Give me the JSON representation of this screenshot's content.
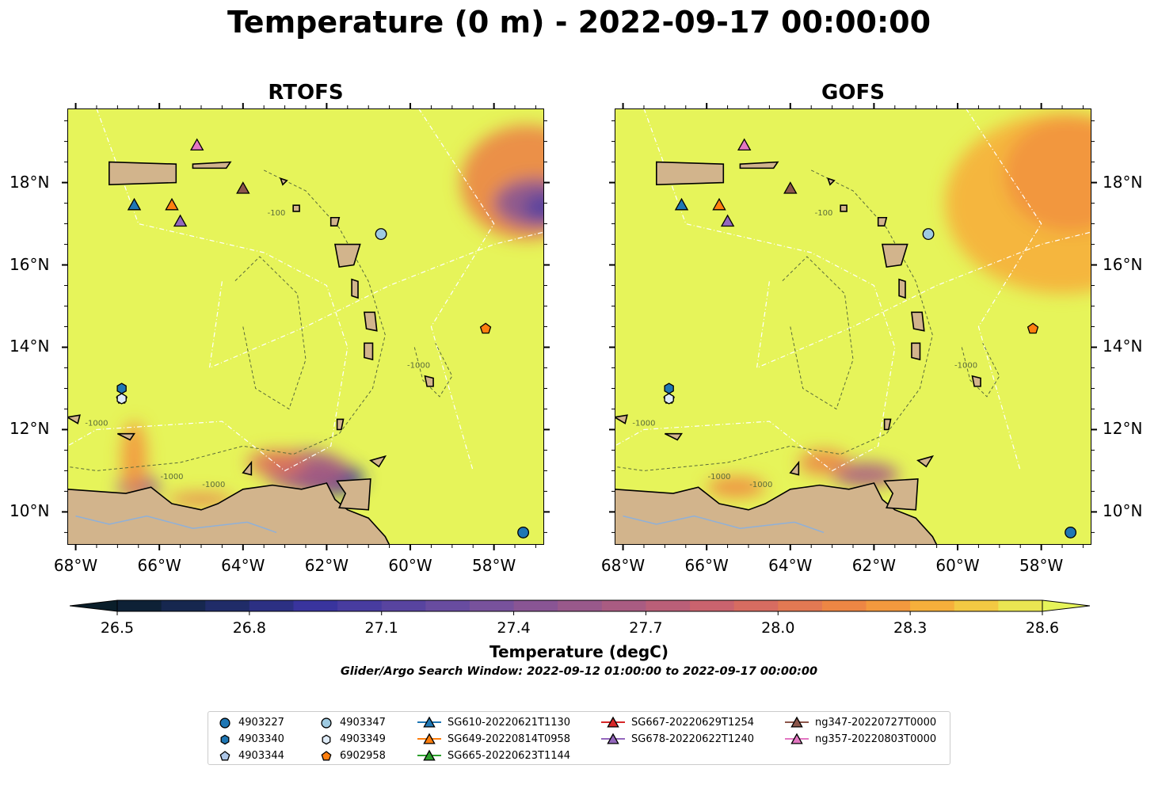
{
  "figure": {
    "title": "Temperature (0 m) - 2022-09-17 00:00:00",
    "search_window": "Glider/Argo Search Window: 2022-09-12 01:00:00 to 2022-09-17 00:00:00"
  },
  "panels": [
    {
      "title": "RTOFS",
      "hotspot": "east",
      "cold": "strong"
    },
    {
      "title": "GOFS",
      "hotspot": "broad",
      "cold": "weak"
    }
  ],
  "map": {
    "lon_range": [
      -68.2,
      -56.8
    ],
    "lat_range": [
      9.2,
      19.8
    ],
    "lon_ticks": [
      "68°W",
      "66°W",
      "64°W",
      "62°W",
      "60°W",
      "58°W"
    ],
    "lat_ticks": [
      "18°N",
      "16°N",
      "14°N",
      "12°N",
      "10°N"
    ],
    "contour_labels": [
      "-1000",
      "-100"
    ],
    "colors": {
      "sea_warm": "#e6f45a",
      "land": "#d2b48c",
      "coastline": "#000000",
      "eez_lines": "#ffffff",
      "bathy_contour": "#5a6b3a"
    }
  },
  "colorbar": {
    "label": "Temperature (degC)",
    "min": 26.5,
    "max": 28.6,
    "ticks": [
      "26.5",
      "26.8",
      "27.1",
      "27.4",
      "27.7",
      "28.0",
      "28.3",
      "28.6"
    ],
    "extend": "both",
    "colormap": "thermal"
  },
  "markers": [
    {
      "id": "4903227",
      "shape": "circle",
      "color": "#1f77b4",
      "lon": -57.3,
      "lat": 9.5
    },
    {
      "id": "4903340",
      "shape": "hexagon",
      "color": "#1f77b4",
      "lon": -66.9,
      "lat": 13.0
    },
    {
      "id": "4903344",
      "shape": "pentagon",
      "color": "#aec7e8",
      "lon": -66.9,
      "lat": 12.75
    },
    {
      "id": "4903347",
      "shape": "circle",
      "color": "#9ecae1",
      "lon": -60.7,
      "lat": 16.75
    },
    {
      "id": "4903349",
      "shape": "hexagon",
      "color": "#deebf7",
      "lon": -66.9,
      "lat": 12.75
    },
    {
      "id": "6902958",
      "shape": "pentagon",
      "color": "#ff7f0e",
      "lon": -58.2,
      "lat": 14.45
    },
    {
      "id": "SG610-20220621T1130",
      "shape": "triangle",
      "color": "#1f77b4",
      "lon": -66.6,
      "lat": 17.45
    },
    {
      "id": "SG649-20220814T0958",
      "shape": "triangle",
      "color": "#ff7f0e",
      "lon": -65.7,
      "lat": 17.45
    },
    {
      "id": "SG678-20220622T1240",
      "shape": "triangle",
      "color": "#9467bd",
      "lon": -65.5,
      "lat": 17.05
    },
    {
      "id": "ng347-20220727T0000",
      "shape": "triangle",
      "color": "#8c564b",
      "lon": -64.0,
      "lat": 17.85
    },
    {
      "id": "ng357-20220803T0000",
      "shape": "triangle",
      "color": "#e377c2",
      "lon": -65.1,
      "lat": 18.9
    }
  ],
  "legend": {
    "columns": [
      [
        {
          "label": "4903227",
          "shape": "circle",
          "color": "#1f77b4",
          "line": false
        },
        {
          "label": "4903340",
          "shape": "hexagon",
          "color": "#1f77b4",
          "line": false
        },
        {
          "label": "4903344",
          "shape": "pentagon",
          "color": "#aec7e8",
          "line": false
        }
      ],
      [
        {
          "label": "4903347",
          "shape": "circle",
          "color": "#9ecae1",
          "line": false
        },
        {
          "label": "4903349",
          "shape": "hexagon",
          "color": "#deebf7",
          "line": false
        },
        {
          "label": "6902958",
          "shape": "pentagon",
          "color": "#ff7f0e",
          "line": false
        }
      ],
      [
        {
          "label": "SG610-20220621T1130",
          "shape": "triangle",
          "color": "#1f77b4",
          "line": true
        },
        {
          "label": "SG649-20220814T0958",
          "shape": "triangle",
          "color": "#ff7f0e",
          "line": true
        },
        {
          "label": "SG665-20220623T1144",
          "shape": "triangle",
          "color": "#2ca02c",
          "line": true
        }
      ],
      [
        {
          "label": "SG667-20220629T1254",
          "shape": "triangle",
          "color": "#d62728",
          "line": true
        },
        {
          "label": "SG678-20220622T1240",
          "shape": "triangle",
          "color": "#9467bd",
          "line": true
        }
      ],
      [
        {
          "label": "ng347-20220727T0000",
          "shape": "triangle",
          "color": "#8c564b",
          "line": true
        },
        {
          "label": "ng357-20220803T0000",
          "shape": "triangle",
          "color": "#e377c2",
          "line": true
        }
      ]
    ]
  }
}
